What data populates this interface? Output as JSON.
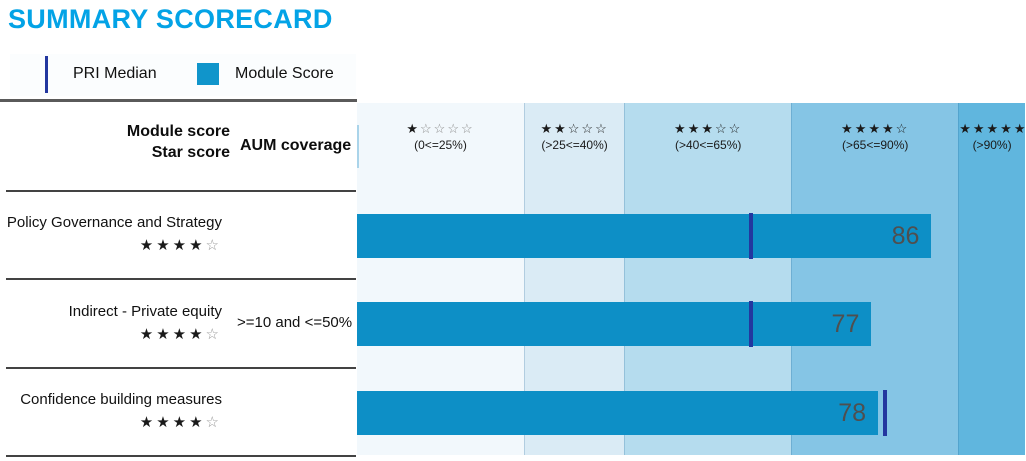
{
  "title": "SUMMARY SCORECARD",
  "legend": {
    "median_label": "PRI Median",
    "score_label": "Module Score"
  },
  "table_header": {
    "line1": "Module score",
    "line2": "Star score",
    "aum": "AUM coverage"
  },
  "colors": {
    "title": "#03a3e6",
    "bar": "#0d8fc6",
    "median_line": "#23379f",
    "legend_square": "#1095cb",
    "score_label": "#4f4f4f",
    "filled_star": "#1a1a1a",
    "row_empty_star": "#999999"
  },
  "chart_data": {
    "type": "bar",
    "orientation": "horizontal",
    "title": "SUMMARY SCORECARD",
    "xlim": [
      0,
      100
    ],
    "legend_entries": [
      "PRI Median",
      "Module Score"
    ],
    "bands": [
      {
        "stars": 1,
        "label": "(0<=25%)",
        "min": 0,
        "max": 25,
        "color": "#f2f8fc",
        "empty_star_color": "#8c8c8c"
      },
      {
        "stars": 2,
        "label": "(>25<=40%)",
        "min": 25,
        "max": 40,
        "color": "#daebf5",
        "empty_star_color": "#1a1a1a"
      },
      {
        "stars": 3,
        "label": "(>40<=65%)",
        "min": 40,
        "max": 65,
        "color": "#b5dcee",
        "empty_star_color": "#1a1a1a"
      },
      {
        "stars": 4,
        "label": "(>65<=90%)",
        "min": 65,
        "max": 90,
        "color": "#85c5e5",
        "empty_star_color": "#1a1a1a"
      },
      {
        "stars": 5,
        "label": "(>90%)",
        "min": 90,
        "max": 100,
        "color": "#60b6de",
        "empty_star_color": "#1a1a1a"
      }
    ],
    "rows": [
      {
        "module": "Policy Governance and Strategy",
        "stars": 4,
        "max_stars": 5,
        "aum_coverage": "",
        "score": 86,
        "pri_median": 59
      },
      {
        "module": "Indirect - Private equity",
        "stars": 4,
        "max_stars": 5,
        "aum_coverage": ">=10 and <=50%",
        "score": 77,
        "pri_median": 59
      },
      {
        "module": "Confidence building measures",
        "stars": 4,
        "max_stars": 5,
        "aum_coverage": "",
        "score": 78,
        "pri_median": 79
      }
    ]
  }
}
